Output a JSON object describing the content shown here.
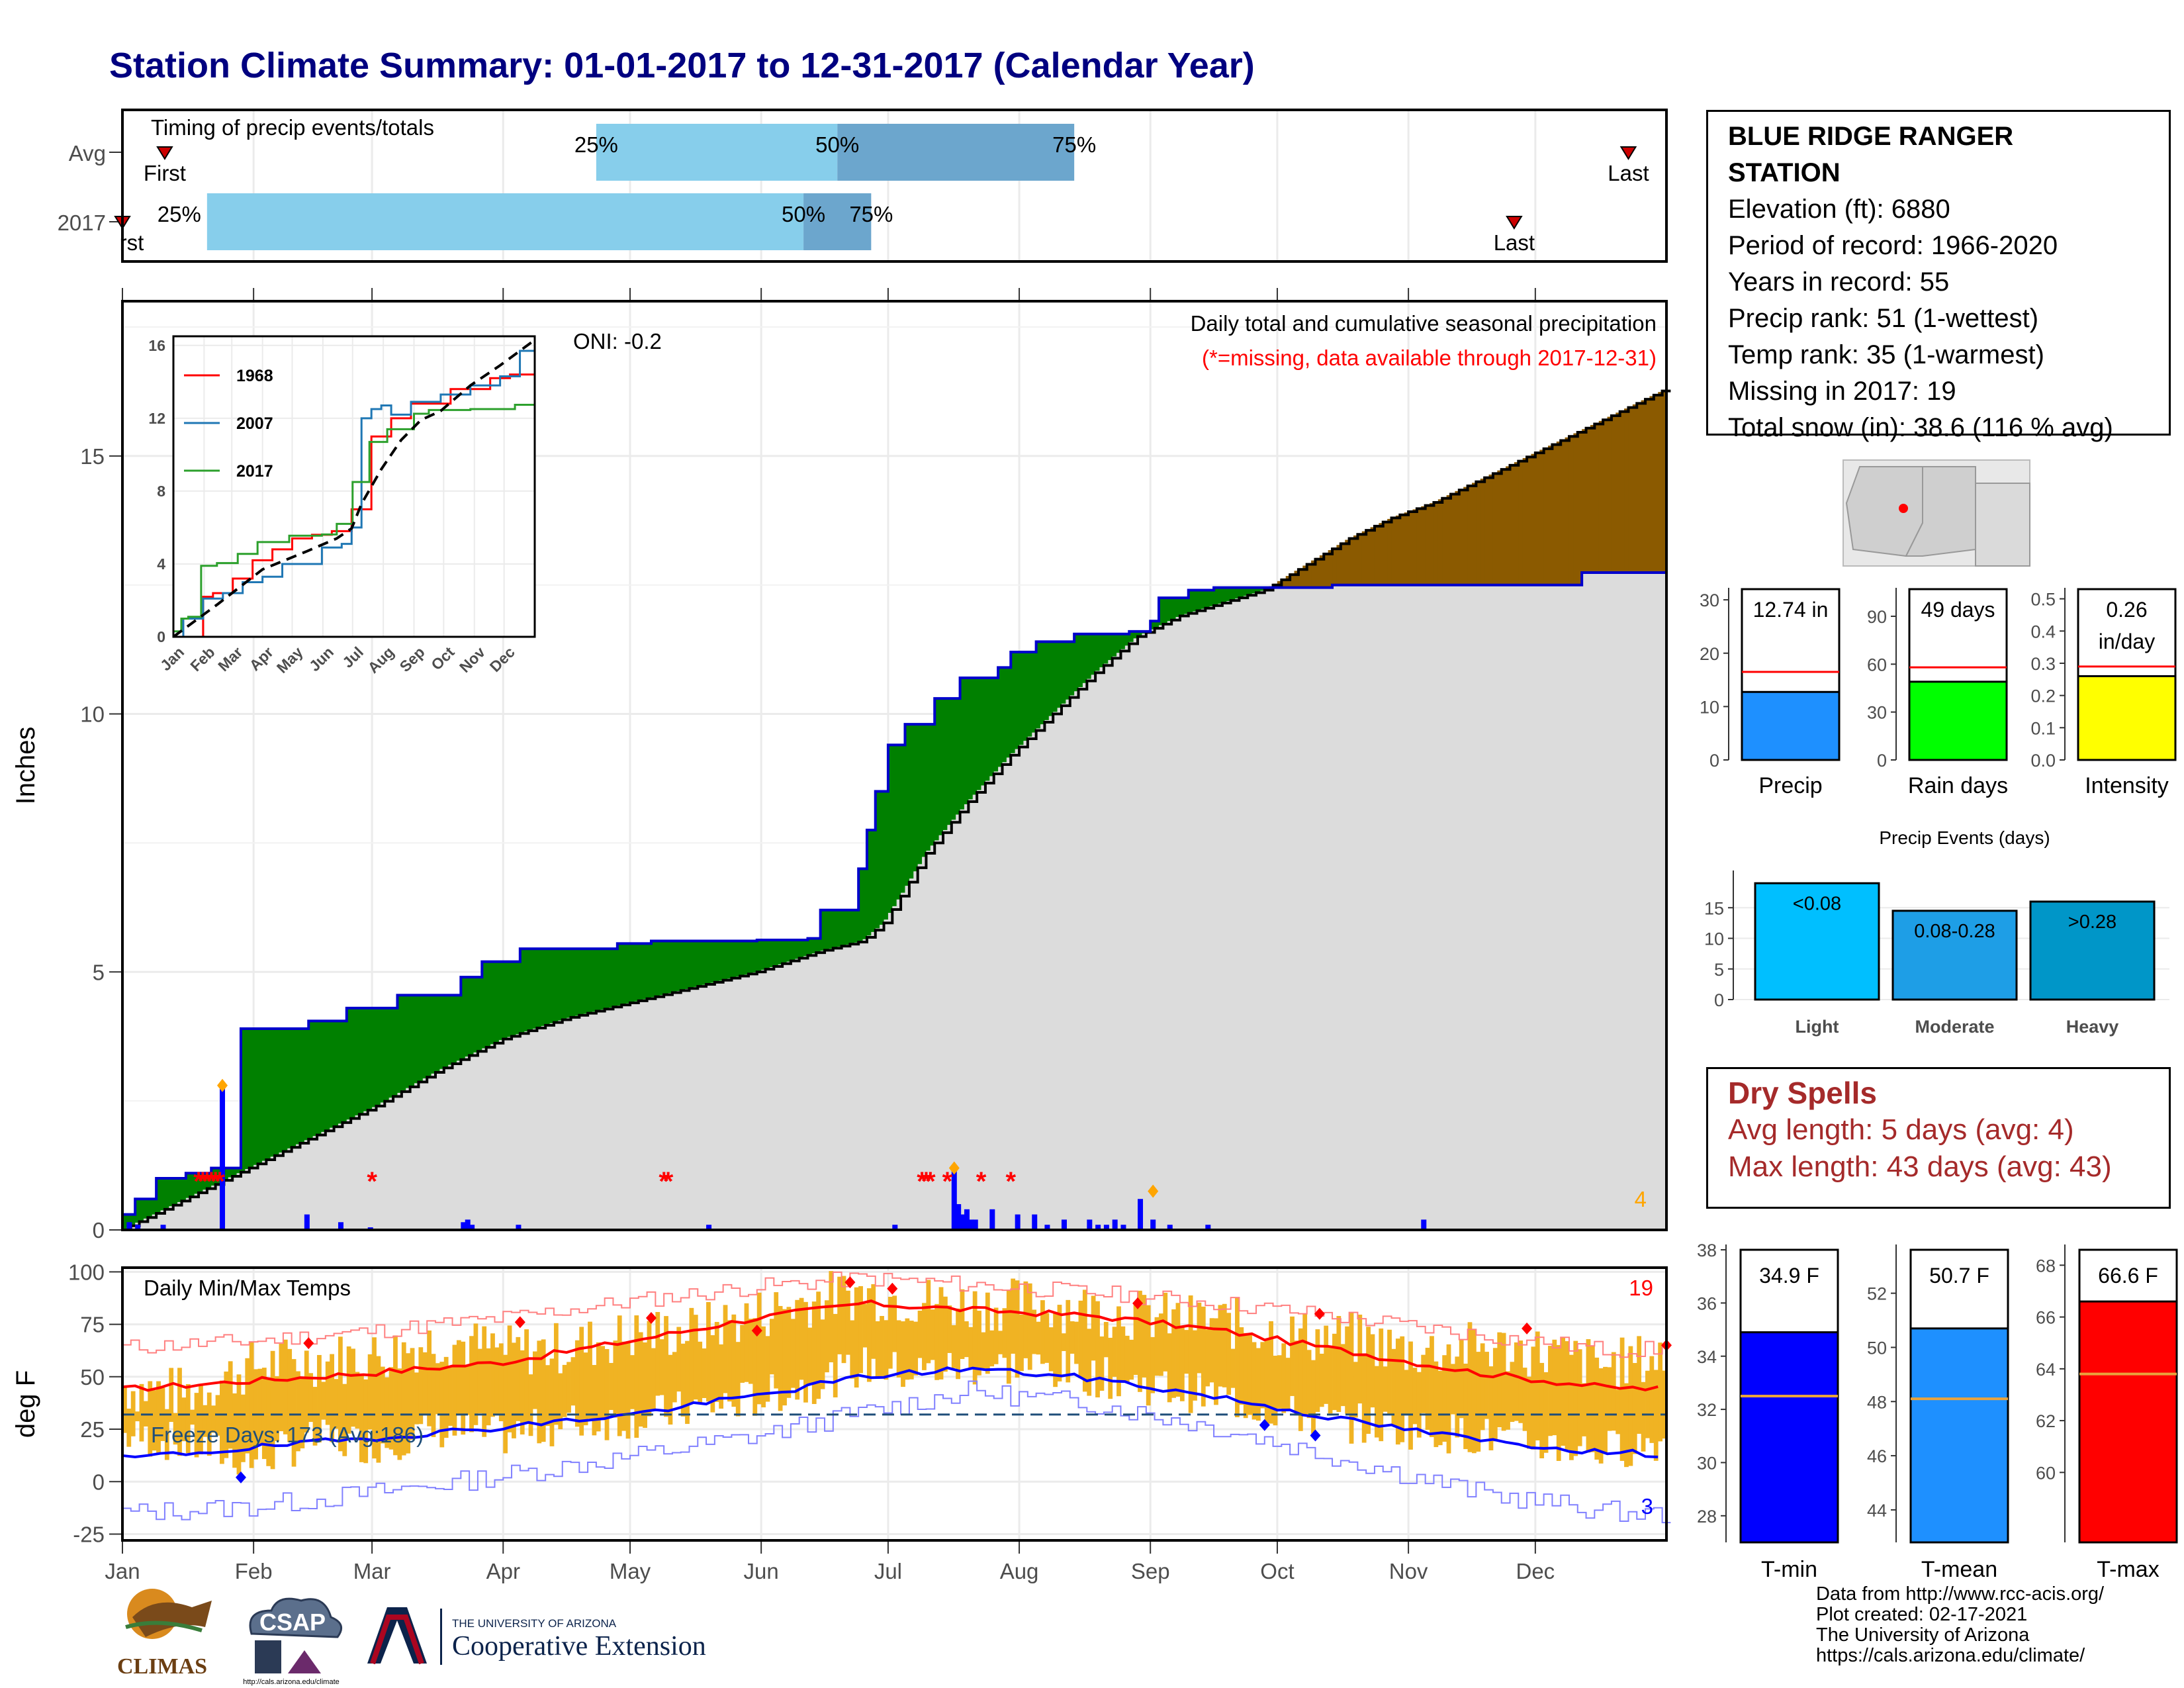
{
  "page": {
    "title": "Station Climate Summary: 01-01-2017 to 12-31-2017 (Calendar Year)"
  },
  "colors": {
    "title": "#000080",
    "cum_2017": "#0000cc",
    "cum_avg_fill": "#dcdcdc",
    "above_avg": "#008000",
    "below_avg": "#8b5a00",
    "quartile_light": "#87ceeb",
    "quartile_dark": "#6ca6cd",
    "temp_bar": "#f0b323",
    "tmax_avg": "#ff0000",
    "tmin_avg": "#0000ff",
    "missing": "#ff0000"
  },
  "timing": {
    "label": "Timing of precip events/totals",
    "rows": [
      "Avg",
      "2017"
    ],
    "avg": {
      "first_day": 10,
      "q25_day": 112,
      "q50_day": 169,
      "q75_day": 225,
      "last_day": 356
    },
    "y2017": {
      "first_day": 0,
      "q25_day": 20,
      "q50_day": 161,
      "q75_day": 177,
      "last_day": 329
    },
    "first_label": "First",
    "last_label": "Last",
    "first_label_clipped": "rst",
    "q25_label": "25%",
    "q50_label": "50%",
    "q75_label": "75%"
  },
  "precip_panel": {
    "ylabel": "Inches",
    "title": "Daily total and cumulative seasonal precipitation",
    "subtitle": "(*=missing, data available through 2017-12-31)",
    "oni": "ONI: -0.2",
    "corner_count": "4",
    "months": [
      "Jan",
      "Feb",
      "Mar",
      "Apr",
      "May",
      "Jun",
      "Jul",
      "Aug",
      "Sep",
      "Oct",
      "Nov",
      "Dec"
    ],
    "yticks": [
      0,
      5,
      10,
      15
    ],
    "ylim": [
      0,
      18
    ],
    "xlim_days": [
      0,
      365
    ],
    "inset_years": [
      "1968",
      "2007",
      "2017"
    ],
    "inset_yticks": [
      0,
      4,
      8,
      12,
      16
    ],
    "inset_months": [
      "Jan",
      "Feb",
      "Mar",
      "Apr",
      "May",
      "Jun",
      "Jul",
      "Aug",
      "Sep",
      "Oct",
      "Nov",
      "Dec"
    ]
  },
  "temp_panel": {
    "ylabel": "deg F",
    "title": "Daily Min/Max Temps",
    "freeze_label": "Freeze Days: 173 (Avg:186)",
    "missing_count": "19",
    "cold_count": "3",
    "yticks": [
      -25,
      0,
      25,
      50,
      75,
      100
    ],
    "ylim": [
      -28,
      102
    ],
    "freeze_line": 32,
    "months": [
      "Jan",
      "Feb",
      "Mar",
      "Apr",
      "May",
      "Jun",
      "Jul",
      "Aug",
      "Sep",
      "Oct",
      "Nov",
      "Dec"
    ]
  },
  "station": {
    "name_line1": "BLUE RIDGE RANGER",
    "name_line2": "STATION",
    "elevation": "Elevation (ft): 6880",
    "period": "Period of record: 1966-2020",
    "years": "Years in record: 55",
    "precip_rank": "Precip rank: 51 (1-wettest)",
    "temp_rank": "Temp rank: 35 (1-warmest)",
    "missing": "Missing in 2017: 19",
    "snow": "Total snow (in): 38.6 (116 % avg)"
  },
  "mini_bars": {
    "precip": {
      "label": "Precip",
      "value": 12.74,
      "avg": 16.5,
      "text": "12.74 in",
      "yticks": [
        "0",
        "10",
        "20",
        "30"
      ],
      "ymax": 32,
      "color": "#1e90ff"
    },
    "rain_days": {
      "label": "Rain days",
      "value": 49,
      "avg": 58,
      "text": "49 days",
      "yticks": [
        "0",
        "30",
        "60",
        "90"
      ],
      "ymax": 107,
      "color": "#00ff00"
    },
    "intensity": {
      "label": "Intensity",
      "value": 0.26,
      "avg": 0.29,
      "text_line1": "0.26",
      "text_line2": "in/day",
      "yticks": [
        "0.0",
        "0.1",
        "0.2",
        "0.3",
        "0.4",
        "0.5"
      ],
      "ymax": 0.53,
      "color": "#ffff00"
    }
  },
  "events": {
    "title": "Precip Events (days)",
    "categories": [
      "Light",
      "Moderate",
      "Heavy"
    ],
    "values": [
      19,
      14.5,
      16
    ],
    "bar_labels": [
      "<0.08",
      "0.08-0.28",
      ">0.28"
    ],
    "colors": [
      "#00bfff",
      "#1e9ee6",
      "#0096c8"
    ],
    "yticks": [
      "0",
      "5",
      "10",
      "15"
    ],
    "ymax": 20
  },
  "dry_spells": {
    "title": "Dry Spells",
    "avg_length": "Avg length: 5 days (avg: 4)",
    "max_length": "Max length: 43 days (avg: 43)"
  },
  "temp_bars": {
    "tmin": {
      "label": "T-min",
      "value": 34.9,
      "avg": 32.5,
      "text": "34.9 F",
      "yticks": [
        "28",
        "30",
        "32",
        "34",
        "36",
        "38"
      ],
      "ymin": 27,
      "ymax": 38.2,
      "color": "#0000ff"
    },
    "tmean": {
      "label": "T-mean",
      "value": 50.7,
      "avg": 48.1,
      "text": "50.7 F",
      "yticks": [
        "44",
        "46",
        "48",
        "50",
        "52"
      ],
      "ymin": 42.8,
      "ymax": 53.8,
      "color": "#1e90ff"
    },
    "tmax": {
      "label": "T-max",
      "value": 66.6,
      "avg": 63.8,
      "text": "66.6 F",
      "yticks": [
        "60",
        "62",
        "64",
        "66",
        "68"
      ],
      "ymin": 57.3,
      "ymax": 68.8,
      "color": "#ff0000"
    }
  },
  "credits": {
    "line1": "Data from http://www.rcc-acis.org/",
    "line2": "Plot created: 02-17-2021",
    "line3": "The University of Arizona",
    "line4": "https://cals.arizona.edu/climate/"
  },
  "logos": {
    "climas": "CLIMAS",
    "csap": "CSAP",
    "csap_url": "http://cals.arizona.edu/climate",
    "ua_small": "THE UNIVERSITY OF ARIZONA",
    "ua_big": "Cooperative Extension"
  },
  "chart_data": [
    {
      "type": "area",
      "title": "Daily total and cumulative seasonal precipitation",
      "ylabel": "Inches",
      "x_units": "day of year",
      "ylim": [
        0,
        18
      ],
      "series": [
        {
          "name": "2017 cumulative",
          "x": [
            0,
            3,
            8,
            15,
            21,
            28,
            44,
            53,
            65,
            80,
            85,
            94,
            117,
            125,
            140,
            150,
            162,
            165,
            174,
            176,
            178,
            181,
            185,
            192,
            198,
            207,
            210,
            216,
            225,
            238,
            243,
            245,
            252,
            258,
            286,
            345,
            365
          ],
          "values": [
            0.3,
            0.6,
            1.0,
            1.1,
            1.2,
            3.9,
            4.05,
            4.3,
            4.55,
            4.9,
            5.2,
            5.45,
            5.55,
            5.6,
            5.6,
            5.62,
            5.65,
            6.2,
            7.0,
            7.75,
            8.5,
            9.4,
            9.8,
            10.3,
            10.7,
            10.9,
            11.2,
            11.4,
            11.55,
            11.6,
            11.8,
            12.25,
            12.4,
            12.45,
            12.5,
            12.74,
            12.74
          ]
        },
        {
          "name": "average cumulative",
          "x": [
            0,
            15,
            30,
            45,
            60,
            75,
            90,
            105,
            120,
            135,
            150,
            165,
            175,
            180,
            185,
            190,
            200,
            210,
            220,
            230,
            240,
            250,
            260,
            270,
            280,
            290,
            300,
            310,
            320,
            330,
            340,
            350,
            365
          ],
          "values": [
            0,
            0.6,
            1.2,
            1.8,
            2.4,
            3.1,
            3.7,
            4.1,
            4.4,
            4.7,
            5.0,
            5.4,
            5.6,
            5.95,
            6.6,
            7.3,
            8.3,
            9.2,
            10.0,
            10.8,
            11.5,
            11.9,
            12.15,
            12.4,
            12.9,
            13.4,
            13.8,
            14.1,
            14.5,
            14.9,
            15.3,
            15.7,
            16.3
          ]
        }
      ],
      "daily_bars": {
        "days": [
          1,
          3,
          9,
          23,
          43,
          51,
          58,
          80,
          81,
          82,
          93,
          138,
          182,
          196,
          197,
          198,
          199,
          200,
          201,
          205,
          211,
          215,
          218,
          222,
          228,
          230,
          232,
          234,
          236,
          240,
          243,
          247,
          256,
          307
        ],
        "values": [
          0.15,
          0.1,
          0.1,
          2.8,
          0.3,
          0.15,
          0.05,
          0.15,
          0.2,
          0.1,
          0.1,
          0.1,
          0.1,
          1.2,
          0.5,
          0.3,
          0.4,
          0.2,
          0.2,
          0.4,
          0.3,
          0.3,
          0.1,
          0.2,
          0.2,
          0.1,
          0.1,
          0.2,
          0.1,
          0.6,
          0.2,
          0.1,
          0.1,
          0.2
        ]
      },
      "missing_days": [
        18,
        19,
        20,
        21,
        22,
        23,
        59,
        128,
        129,
        189,
        190,
        191,
        195,
        203,
        210
      ],
      "inset": {
        "type": "line",
        "ylim": [
          0,
          16
        ],
        "series": [
          {
            "name": "1968",
            "x": [
              0,
              20,
              30,
              40,
              60,
              80,
              100,
              120,
              140,
              160,
              180,
              200,
              220,
              240,
              260,
              280,
              300,
              320,
              340,
              365
            ],
            "values": [
              0,
              0,
              2.2,
              2.4,
              3.2,
              4.2,
              4.8,
              5.4,
              5.6,
              5.8,
              7.0,
              11.0,
              12.0,
              12.8,
              12.8,
              13.6,
              13.6,
              14.2,
              14.4,
              15.3
            ]
          },
          {
            "name": "2007",
            "x": [
              0,
              10,
              30,
              50,
              70,
              90,
              110,
              130,
              150,
              170,
              180,
              190,
              200,
              210,
              220,
              240,
              270,
              300,
              330,
              350,
              365
            ],
            "values": [
              0,
              1.0,
              2.1,
              2.4,
              3.0,
              3.3,
              4.0,
              4.0,
              4.9,
              5.1,
              6.0,
              12.0,
              12.5,
              12.7,
              12.2,
              12.9,
              13.3,
              13.8,
              14.3,
              15.7,
              15.9
            ]
          },
          {
            "name": "2017",
            "x": [
              0,
              8,
              15,
              28,
              44,
              65,
              85,
              117,
              150,
              165,
              181,
              198,
              216,
              243,
              258,
              300,
              345,
              365
            ],
            "values": [
              0.3,
              1.0,
              1.1,
              3.9,
              4.05,
              4.55,
              5.2,
              5.55,
              5.62,
              6.2,
              8.5,
              10.7,
              11.4,
              12.25,
              12.45,
              12.5,
              12.74,
              12.74
            ]
          },
          {
            "name": "average",
            "x": [
              0,
              45,
              90,
              135,
              165,
              180,
              190,
              210,
              230,
              250,
              270,
              300,
              330,
              365
            ],
            "values": [
              0,
              1.8,
              3.7,
              4.7,
              5.4,
              5.95,
              7.3,
              9.2,
              10.8,
              11.9,
              12.4,
              13.8,
              14.9,
              16.3
            ]
          }
        ]
      }
    },
    {
      "type": "line",
      "title": "Daily Min/Max Temps",
      "ylabel": "deg F",
      "x_units": "day of year",
      "ylim": [
        -28,
        102
      ],
      "series": [
        {
          "name": "avg max",
          "x": [
            0,
            30,
            60,
            90,
            120,
            150,
            175,
            200,
            230,
            260,
            290,
            320,
            350,
            365
          ],
          "values": [
            44,
            48,
            52,
            57,
            67,
            78,
            85,
            82,
            79,
            72,
            62,
            52,
            45,
            44
          ]
        },
        {
          "name": "avg min",
          "x": [
            0,
            30,
            60,
            90,
            120,
            150,
            175,
            200,
            230,
            260,
            290,
            320,
            350,
            365
          ],
          "values": [
            11,
            16,
            21,
            26,
            32,
            41,
            50,
            54,
            49,
            40,
            29,
            20,
            14,
            13
          ]
        },
        {
          "name": "record max",
          "x": [
            0,
            30,
            60,
            90,
            120,
            150,
            175,
            200,
            230,
            260,
            290,
            320,
            350,
            365
          ],
          "values": [
            64,
            67,
            72,
            78,
            86,
            93,
            97,
            94,
            90,
            85,
            78,
            70,
            63,
            63
          ]
        },
        {
          "name": "record min",
          "x": [
            0,
            30,
            60,
            90,
            120,
            150,
            175,
            200,
            230,
            260,
            290,
            320,
            350,
            365
          ],
          "values": [
            -15,
            -12,
            -5,
            3,
            12,
            22,
            33,
            43,
            37,
            25,
            10,
            -5,
            -14,
            -16
          ]
        },
        {
          "name": "2017 max",
          "x": [
            0,
            15,
            30,
            45,
            60,
            75,
            90,
            105,
            120,
            135,
            150,
            165,
            175,
            185,
            200,
            215,
            230,
            245,
            260,
            275,
            290,
            305,
            320,
            335,
            350,
            365
          ],
          "values": [
            45,
            42,
            55,
            58,
            60,
            68,
            62,
            64,
            70,
            72,
            80,
            88,
            90,
            87,
            84,
            85,
            82,
            78,
            76,
            70,
            68,
            62,
            64,
            62,
            55,
            60
          ]
        },
        {
          "name": "2017 min",
          "x": [
            0,
            15,
            30,
            45,
            60,
            75,
            90,
            105,
            120,
            135,
            150,
            165,
            175,
            185,
            200,
            215,
            230,
            245,
            260,
            275,
            290,
            305,
            320,
            335,
            350,
            365
          ],
          "values": [
            22,
            18,
            10,
            20,
            18,
            25,
            22,
            28,
            30,
            35,
            40,
            48,
            55,
            52,
            55,
            55,
            50,
            45,
            40,
            32,
            28,
            25,
            22,
            18,
            15,
            20
          ]
        }
      ]
    },
    {
      "type": "bar",
      "categories": [
        "Precip",
        "Rain days",
        "Intensity"
      ],
      "values": [
        12.74,
        49,
        0.26
      ]
    },
    {
      "type": "bar",
      "title": "Precip Events (days)",
      "categories": [
        "Light",
        "Moderate",
        "Heavy"
      ],
      "values": [
        19,
        14.5,
        16
      ]
    },
    {
      "type": "bar",
      "categories": [
        "T-min",
        "T-mean",
        "T-max"
      ],
      "values": [
        34.9,
        50.7,
        66.6
      ]
    }
  ]
}
